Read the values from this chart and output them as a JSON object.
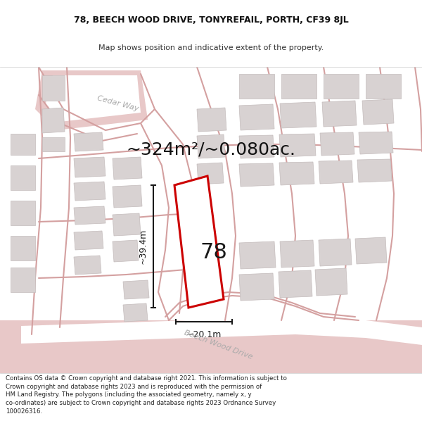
{
  "title_line1": "78, BEECH WOOD DRIVE, TONYREFAIL, PORTH, CF39 8JL",
  "title_line2": "Map shows position and indicative extent of the property.",
  "area_text": "~324m²/~0.080ac.",
  "label_78": "78",
  "dim_height": "~39.4m",
  "dim_width": "~20.1m",
  "road_label_cedar": "Cedar Way",
  "road_label_beech": "Beech Wood Drive",
  "footer_text": "Contains OS data © Crown copyright and database right 2021. This information is subject to Crown copyright and database rights 2023 and is reproduced with the permission of HM Land Registry. The polygons (including the associated geometry, namely x, y co-ordinates) are subject to Crown copyright and database rights 2023 Ordnance Survey 100026316.",
  "map_bg": "#f0eded",
  "road_fill": "#e8c8c8",
  "road_line": "#d4a0a0",
  "build_fill": "#d8d2d2",
  "build_edge": "#c4bcbc",
  "white": "#ffffff",
  "plot_red": "#cc0000",
  "dim_color": "#1a1a1a",
  "title_font": 9,
  "subtitle_font": 8,
  "area_font": 18,
  "label_font": 22,
  "dim_font": 9,
  "road_font": 8
}
